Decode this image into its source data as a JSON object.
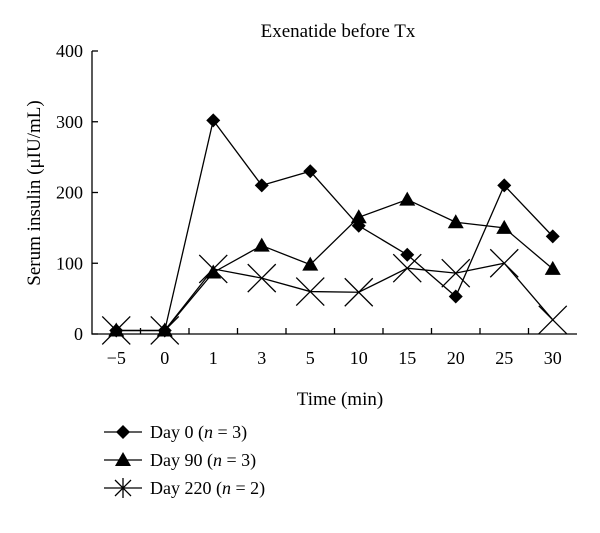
{
  "chart_data": {
    "type": "line",
    "title": "Exenatide before Tx",
    "xlabel": "Time (min)",
    "ylabel": "Serum insulin (μIU/mL)",
    "categories": [
      "−5",
      "0",
      "1",
      "3",
      "5",
      "10",
      "15",
      "20",
      "25",
      "30"
    ],
    "ylim": [
      0,
      400
    ],
    "yticks": [
      0,
      100,
      200,
      300,
      400
    ],
    "grid": false,
    "legend_position": "bottom-left",
    "series": [
      {
        "name": "Day 0",
        "n_label": "3",
        "marker": "diamond",
        "values": [
          5,
          5,
          302,
          210,
          230,
          153,
          112,
          53,
          210,
          138
        ]
      },
      {
        "name": "Day 90",
        "n_label": "3",
        "marker": "triangle",
        "values": [
          5,
          5,
          87,
          125,
          98,
          165,
          190,
          158,
          150,
          92
        ]
      },
      {
        "name": "Day 220",
        "n_label": "2",
        "marker": "x-star",
        "values": [
          5,
          5,
          92,
          79,
          60,
          59,
          93,
          86,
          100,
          20
        ]
      }
    ]
  }
}
